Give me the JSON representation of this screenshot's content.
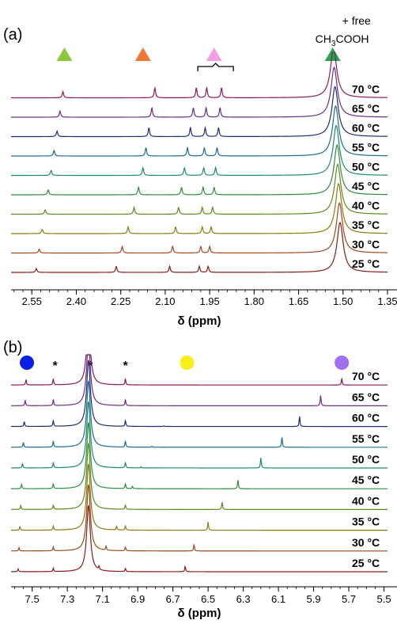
{
  "chart_data": [
    {
      "type": "line",
      "panel_label": "(a)",
      "xlabel": "δ (ppm)",
      "xlim": [
        2.62,
        1.35
      ],
      "x_reversed": true,
      "ticks": [
        2.55,
        2.4,
        2.25,
        2.1,
        1.95,
        1.8,
        1.65,
        1.5,
        1.35
      ],
      "tick_labels": [
        "2.55",
        "2.40",
        "2.25",
        "2.10",
        "1.95",
        "1.80",
        "1.65",
        "1.50",
        "1.35"
      ],
      "annotations": [
        {
          "marker": "triangle",
          "color": "#8cc63f",
          "x": 2.44
        },
        {
          "marker": "triangle",
          "color": "#f07836",
          "x": 2.175
        },
        {
          "marker": "triangle",
          "color": "#f39ee0",
          "x": 1.935,
          "bracket": [
            1.99,
            1.87
          ]
        },
        {
          "marker": "triangle",
          "color": "#22a84a",
          "x": 1.535,
          "text": "+ free",
          "text2_main": "CH",
          "text2_sub": "3",
          "text2_tail": "COOH"
        }
      ],
      "series": [
        {
          "name": "25 °C",
          "color": "#8b1a1a",
          "peaks": [
            [
              2.535,
              0.35
            ],
            [
              2.265,
              0.55
            ],
            [
              2.085,
              0.55
            ],
            [
              1.985,
              0.55
            ],
            [
              1.955,
              0.55
            ],
            [
              1.51,
              4.5
            ]
          ]
        },
        {
          "name": "30 °C",
          "color": "#9c4a1e",
          "peaks": [
            [
              2.525,
              0.35
            ],
            [
              2.245,
              0.6
            ],
            [
              2.075,
              0.6
            ],
            [
              1.98,
              0.6
            ],
            [
              1.95,
              0.6
            ],
            [
              1.512,
              4.5
            ]
          ]
        },
        {
          "name": "35 °C",
          "color": "#8c7a12",
          "peaks": [
            [
              2.515,
              0.4
            ],
            [
              2.225,
              0.6
            ],
            [
              2.065,
              0.6
            ],
            [
              1.975,
              0.6
            ],
            [
              1.945,
              0.6
            ],
            [
              1.515,
              4.5
            ]
          ]
        },
        {
          "name": "40 °C",
          "color": "#5c8c1e",
          "peaks": [
            [
              2.505,
              0.4
            ],
            [
              2.205,
              0.62
            ],
            [
              2.055,
              0.62
            ],
            [
              1.975,
              0.62
            ],
            [
              1.94,
              0.62
            ],
            [
              1.518,
              4.5
            ]
          ]
        },
        {
          "name": "45 °C",
          "color": "#2e8c3e",
          "peaks": [
            [
              2.495,
              0.45
            ],
            [
              2.19,
              0.68
            ],
            [
              2.045,
              0.68
            ],
            [
              1.972,
              0.68
            ],
            [
              1.935,
              0.68
            ],
            [
              1.52,
              4.5
            ]
          ]
        },
        {
          "name": "50 °C",
          "color": "#1c8c6e",
          "peaks": [
            [
              2.485,
              0.45
            ],
            [
              2.175,
              0.7
            ],
            [
              2.035,
              0.7
            ],
            [
              1.97,
              0.7
            ],
            [
              1.93,
              0.7
            ],
            [
              1.523,
              4.5
            ]
          ]
        },
        {
          "name": "55 °C",
          "color": "#1e6c8c",
          "peaks": [
            [
              2.475,
              0.5
            ],
            [
              2.165,
              0.75
            ],
            [
              2.025,
              0.75
            ],
            [
              1.968,
              0.75
            ],
            [
              1.925,
              0.75
            ],
            [
              1.525,
              4.5
            ]
          ]
        },
        {
          "name": "60 °C",
          "color": "#1e2c7a",
          "peaks": [
            [
              2.465,
              0.5
            ],
            [
              2.155,
              0.8
            ],
            [
              2.015,
              0.8
            ],
            [
              1.965,
              0.8
            ],
            [
              1.92,
              0.8
            ],
            [
              1.527,
              4.5
            ]
          ]
        },
        {
          "name": "65 °C",
          "color": "#6a2c8c",
          "peaks": [
            [
              2.455,
              0.55
            ],
            [
              2.145,
              0.85
            ],
            [
              2.005,
              0.85
            ],
            [
              1.962,
              0.85
            ],
            [
              1.915,
              0.85
            ],
            [
              1.53,
              4.5
            ]
          ]
        },
        {
          "name": "70 °C",
          "color": "#8c1a5a",
          "peaks": [
            [
              2.445,
              0.55
            ],
            [
              2.135,
              0.9
            ],
            [
              1.995,
              0.9
            ],
            [
              1.96,
              0.9
            ],
            [
              1.91,
              0.9
            ],
            [
              1.532,
              4.5
            ]
          ]
        }
      ]
    },
    {
      "type": "line",
      "panel_label": "(b)",
      "xlabel": "δ (ppm)",
      "xlim": [
        7.62,
        5.48
      ],
      "x_reversed": true,
      "ticks": [
        7.5,
        7.3,
        7.1,
        6.9,
        6.7,
        6.5,
        6.3,
        6.1,
        5.9,
        5.7,
        5.5
      ],
      "tick_labels": [
        "7.5",
        "7.3",
        "7.1",
        "6.9",
        "6.7",
        "6.5",
        "6.3",
        "6.1",
        "5.9",
        "5.7",
        "5.5"
      ],
      "annotations": [
        {
          "marker": "circle",
          "color": "#0a1ee6",
          "x": 7.53
        },
        {
          "marker": "text",
          "text": "*",
          "x": 7.37
        },
        {
          "marker": "text",
          "text": "*",
          "x": 7.17
        },
        {
          "marker": "text",
          "text": "*",
          "x": 6.97
        },
        {
          "marker": "circle",
          "color": "#f5f01a",
          "x": 6.62
        },
        {
          "marker": "circle",
          "color": "#a070f0",
          "x": 5.74
        }
      ],
      "series": [
        {
          "name": "25 °C",
          "color": "#8b1a1a",
          "peaks": [
            [
              7.58,
              0.25
            ],
            [
              7.38,
              0.3
            ],
            [
              7.18,
              6.0
            ],
            [
              7.12,
              0.3
            ],
            [
              6.97,
              0.3
            ],
            [
              6.63,
              0.5
            ]
          ]
        },
        {
          "name": "30 °C",
          "color": "#9c4a1e",
          "peaks": [
            [
              7.575,
              0.3
            ],
            [
              7.38,
              0.35
            ],
            [
              7.18,
              6.0
            ],
            [
              7.08,
              0.35
            ],
            [
              6.97,
              0.35
            ],
            [
              6.58,
              0.6
            ]
          ]
        },
        {
          "name": "35 °C",
          "color": "#8c7a12",
          "peaks": [
            [
              7.57,
              0.35
            ],
            [
              7.38,
              0.35
            ],
            [
              7.18,
              6.0
            ],
            [
              7.02,
              0.35
            ],
            [
              6.97,
              0.4
            ],
            [
              6.5,
              0.75
            ]
          ]
        },
        {
          "name": "40 °C",
          "color": "#5c8c1e",
          "peaks": [
            [
              7.565,
              0.35
            ],
            [
              7.38,
              0.4
            ],
            [
              7.18,
              6.0
            ],
            [
              6.97,
              0.4
            ],
            [
              6.42,
              0.7
            ]
          ]
        },
        {
          "name": "45 °C",
          "color": "#2e8c3e",
          "peaks": [
            [
              7.56,
              0.4
            ],
            [
              7.38,
              0.45
            ],
            [
              7.18,
              6.0
            ],
            [
              6.97,
              0.45
            ],
            [
              6.93,
              0.2
            ],
            [
              6.33,
              0.85
            ]
          ]
        },
        {
          "name": "50 °C",
          "color": "#1c8c6e",
          "peaks": [
            [
              7.555,
              0.4
            ],
            [
              7.38,
              0.5
            ],
            [
              7.18,
              6.0
            ],
            [
              6.97,
              0.5
            ],
            [
              6.88,
              0.1
            ],
            [
              6.2,
              0.95
            ]
          ]
        },
        {
          "name": "55 °C",
          "color": "#1e6c8c",
          "peaks": [
            [
              7.55,
              0.45
            ],
            [
              7.38,
              0.55
            ],
            [
              7.18,
              6.0
            ],
            [
              6.97,
              0.55
            ],
            [
              6.82,
              0.08
            ],
            [
              6.08,
              0.95
            ]
          ]
        },
        {
          "name": "60 °C",
          "color": "#1e2c7a",
          "peaks": [
            [
              7.545,
              0.45
            ],
            [
              7.38,
              0.55
            ],
            [
              7.18,
              6.0
            ],
            [
              6.97,
              0.55
            ],
            [
              6.75,
              0.05
            ],
            [
              5.98,
              0.95
            ]
          ]
        },
        {
          "name": "65 °C",
          "color": "#6a2c8c",
          "peaks": [
            [
              7.54,
              0.5
            ],
            [
              7.38,
              0.55
            ],
            [
              7.18,
              6.0
            ],
            [
              6.97,
              0.55
            ],
            [
              5.86,
              0.95
            ]
          ]
        },
        {
          "name": "70 °C",
          "color": "#8c1a5a",
          "peaks": [
            [
              7.535,
              0.5
            ],
            [
              7.38,
              0.55
            ],
            [
              7.18,
              6.0
            ],
            [
              6.97,
              0.55
            ],
            [
              5.74,
              0.6
            ]
          ]
        }
      ]
    }
  ]
}
